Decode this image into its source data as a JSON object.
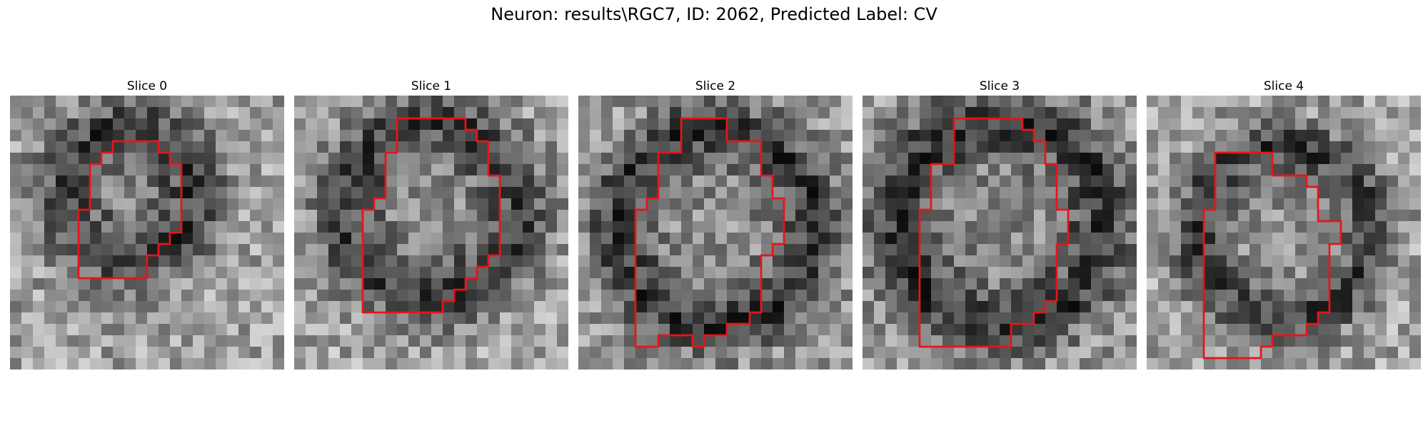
{
  "figure": {
    "title": "Neuron: results\\RGC7, ID: 2062, Predicted Label: CV",
    "grid_size": 24,
    "contour_color": "#e8141a",
    "slices": [
      {
        "title": "Slice 0",
        "contour": [
          [
            9,
            4
          ],
          [
            13,
            4
          ],
          [
            13,
            5
          ],
          [
            14,
            5
          ],
          [
            14,
            6
          ],
          [
            15,
            6
          ],
          [
            15,
            12
          ],
          [
            14,
            12
          ],
          [
            14,
            13
          ],
          [
            13,
            13
          ],
          [
            13,
            14
          ],
          [
            12,
            14
          ],
          [
            12,
            16
          ],
          [
            6,
            16
          ],
          [
            6,
            10
          ],
          [
            7,
            10
          ],
          [
            7,
            6
          ],
          [
            8,
            6
          ],
          [
            8,
            5
          ],
          [
            9,
            5
          ]
        ]
      },
      {
        "title": "Slice 1",
        "contour": [
          [
            9,
            2
          ],
          [
            15,
            2
          ],
          [
            15,
            3
          ],
          [
            16,
            3
          ],
          [
            16,
            4
          ],
          [
            17,
            4
          ],
          [
            17,
            7
          ],
          [
            18,
            7
          ],
          [
            18,
            14
          ],
          [
            17,
            14
          ],
          [
            17,
            15
          ],
          [
            16,
            15
          ],
          [
            16,
            16
          ],
          [
            15,
            16
          ],
          [
            15,
            17
          ],
          [
            14,
            17
          ],
          [
            14,
            18
          ],
          [
            13,
            18
          ],
          [
            13,
            19
          ],
          [
            6,
            19
          ],
          [
            6,
            10
          ],
          [
            7,
            10
          ],
          [
            7,
            9
          ],
          [
            8,
            9
          ],
          [
            8,
            5
          ],
          [
            9,
            5
          ]
        ]
      },
      {
        "title": "Slice 2",
        "contour": [
          [
            9,
            2
          ],
          [
            13,
            2
          ],
          [
            13,
            4
          ],
          [
            16,
            4
          ],
          [
            16,
            7
          ],
          [
            17,
            7
          ],
          [
            17,
            9
          ],
          [
            18,
            9
          ],
          [
            18,
            13
          ],
          [
            17,
            13
          ],
          [
            17,
            14
          ],
          [
            16,
            14
          ],
          [
            16,
            19
          ],
          [
            15,
            19
          ],
          [
            15,
            20
          ],
          [
            13,
            20
          ],
          [
            13,
            21
          ],
          [
            11,
            21
          ],
          [
            11,
            22
          ],
          [
            10,
            22
          ],
          [
            10,
            21
          ],
          [
            7,
            21
          ],
          [
            7,
            22
          ],
          [
            5,
            22
          ],
          [
            5,
            10
          ],
          [
            6,
            10
          ],
          [
            6,
            9
          ],
          [
            7,
            9
          ],
          [
            7,
            5
          ],
          [
            9,
            5
          ]
        ]
      },
      {
        "title": "Slice 3",
        "contour": [
          [
            9,
            2
          ],
          [
            14,
            2
          ],
          [
            14,
            3
          ],
          [
            15,
            3
          ],
          [
            15,
            4
          ],
          [
            16,
            4
          ],
          [
            16,
            6
          ],
          [
            17,
            6
          ],
          [
            17,
            10
          ],
          [
            18,
            10
          ],
          [
            18,
            13
          ],
          [
            17,
            13
          ],
          [
            17,
            18
          ],
          [
            16,
            18
          ],
          [
            16,
            19
          ],
          [
            15,
            19
          ],
          [
            15,
            20
          ],
          [
            13,
            20
          ],
          [
            13,
            22
          ],
          [
            5,
            22
          ],
          [
            5,
            10
          ],
          [
            6,
            10
          ],
          [
            6,
            6
          ],
          [
            8,
            6
          ],
          [
            8,
            2
          ]
        ]
      },
      {
        "title": "Slice 4",
        "contour": [
          [
            7,
            5
          ],
          [
            11,
            5
          ],
          [
            11,
            7
          ],
          [
            14,
            7
          ],
          [
            14,
            8
          ],
          [
            15,
            8
          ],
          [
            15,
            11
          ],
          [
            17,
            11
          ],
          [
            17,
            13
          ],
          [
            16,
            13
          ],
          [
            16,
            19
          ],
          [
            15,
            19
          ],
          [
            15,
            20
          ],
          [
            14,
            20
          ],
          [
            14,
            21
          ],
          [
            11,
            21
          ],
          [
            11,
            22
          ],
          [
            10,
            22
          ],
          [
            10,
            23
          ],
          [
            5,
            23
          ],
          [
            5,
            10
          ],
          [
            6,
            10
          ],
          [
            6,
            5
          ]
        ]
      }
    ]
  }
}
